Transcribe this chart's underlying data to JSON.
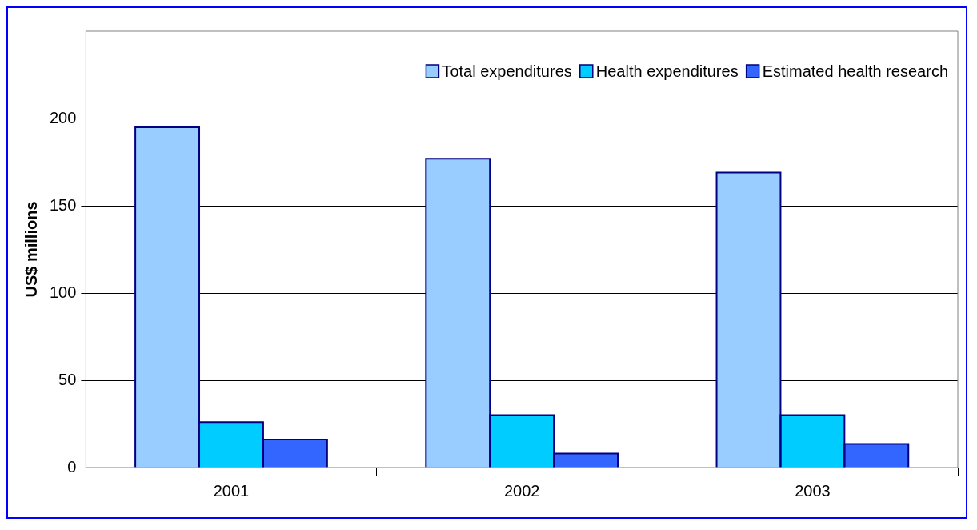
{
  "chart_data": {
    "type": "bar",
    "ylabel": "US$ millions",
    "categories": [
      "2001",
      "2002",
      "2003"
    ],
    "series": [
      {
        "name": "Total expenditures",
        "color": "#99ccff",
        "values": [
          195,
          177,
          169
        ]
      },
      {
        "name": "Health expenditures",
        "color": "#00ccff",
        "values": [
          26,
          30,
          30
        ]
      },
      {
        "name": "Estimated health research",
        "color": "#3366ff",
        "values": [
          16,
          8,
          13.5
        ]
      }
    ],
    "ylim": [
      0,
      250
    ],
    "yticks": [
      0,
      50,
      100,
      150,
      200
    ],
    "grid": "y",
    "legend": "top right"
  }
}
